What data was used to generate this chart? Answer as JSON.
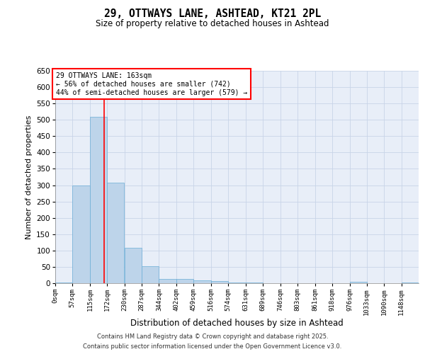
{
  "title": "29, OTTWAYS LANE, ASHTEAD, KT21 2PL",
  "subtitle": "Size of property relative to detached houses in Ashtead",
  "xlabel": "Distribution of detached houses by size in Ashtead",
  "ylabel": "Number of detached properties",
  "bin_edges": [
    0,
    57,
    115,
    172,
    230,
    287,
    344,
    402,
    459,
    516,
    574,
    631,
    689,
    746,
    803,
    861,
    918,
    976,
    1033,
    1090,
    1148,
    1205
  ],
  "bin_labels": [
    "0sqm",
    "57sqm",
    "115sqm",
    "172sqm",
    "230sqm",
    "287sqm",
    "344sqm",
    "402sqm",
    "459sqm",
    "516sqm",
    "574sqm",
    "631sqm",
    "689sqm",
    "746sqm",
    "803sqm",
    "861sqm",
    "918sqm",
    "976sqm",
    "1033sqm",
    "1090sqm",
    "1148sqm"
  ],
  "bar_heights": [
    3,
    300,
    510,
    307,
    108,
    52,
    13,
    13,
    8,
    6,
    3,
    2,
    1,
    1,
    1,
    1,
    1,
    4,
    1,
    1,
    3
  ],
  "bar_color": "#bdd4ea",
  "bar_edge_color": "#6baed6",
  "property_line_x": 163,
  "property_line_color": "red",
  "annotation_text": "29 OTTWAYS LANE: 163sqm\n← 56% of detached houses are smaller (742)\n44% of semi-detached houses are larger (579) →",
  "annotation_box_color": "white",
  "annotation_box_edge_color": "red",
  "ylim": [
    0,
    650
  ],
  "yticks": [
    0,
    50,
    100,
    150,
    200,
    250,
    300,
    350,
    400,
    450,
    500,
    550,
    600,
    650
  ],
  "grid_color": "#c8d4e8",
  "background_color": "#e8eef8",
  "footer_line1": "Contains HM Land Registry data © Crown copyright and database right 2025.",
  "footer_line2": "Contains public sector information licensed under the Open Government Licence v3.0."
}
